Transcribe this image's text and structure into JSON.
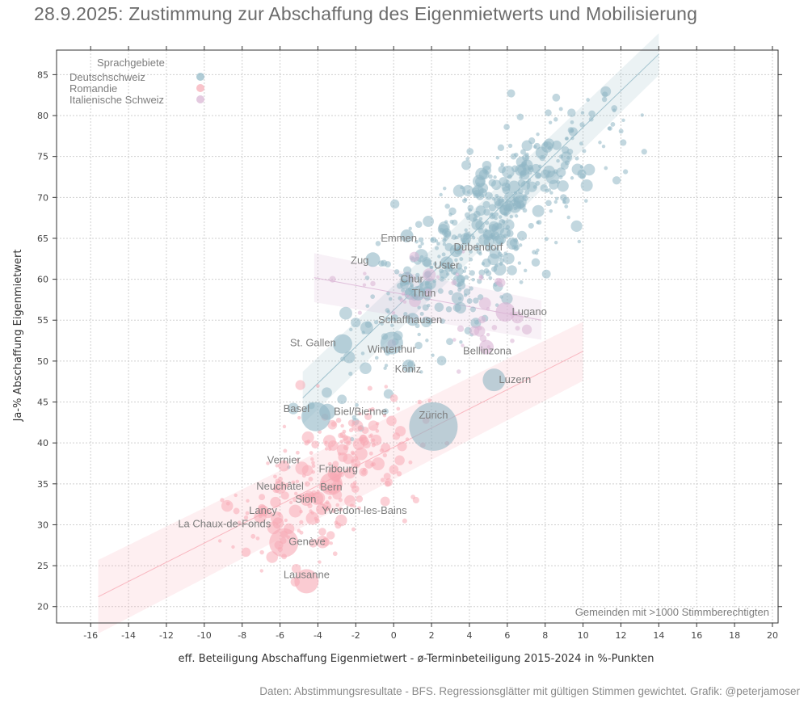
{
  "title": "28.9.2025: Zustimmung zur Abschaffung des Eigenmietwerts und Mobilisierung",
  "caption": "Daten: Abstimmungsresultate - BFS. Regressionsglätter mit gültigen Stimmen gewichtet. Grafik: @peterjamoser",
  "colors": {
    "deutschschweiz": "#8fb6c4",
    "romandie": "#f7a9b4",
    "italienische_schweiz": "#d9b3d3",
    "grid": "#cfcfcf",
    "frame": "#333333"
  },
  "chart_data": {
    "type": "scatter",
    "title": "28.9.2025: Zustimmung zur Abschaffung des Eigenmietwerts und Mobilisierung",
    "xlabel": "eff. Beteiligung Abschaffung Eigenmietwert - ø-Terminbeteiligung 2015-2024 in %-Punkten",
    "ylabel": "Ja-% Abschaffung Eigenmietwert",
    "xlim": [
      -17.8,
      20.3
    ],
    "ylim": [
      18,
      88
    ],
    "xticks": [
      -16,
      -14,
      -12,
      -10,
      -8,
      -6,
      -4,
      -2,
      0,
      2,
      4,
      6,
      8,
      10,
      12,
      14,
      16,
      18,
      20
    ],
    "yticks": [
      20,
      25,
      30,
      35,
      40,
      45,
      50,
      55,
      60,
      65,
      70,
      75,
      80,
      85
    ],
    "grid": true,
    "legend": {
      "title": "Sprachgebiete",
      "position": "top-left",
      "entries": [
        "Deutschschweiz",
        "Romandie",
        "Italienische Schweiz"
      ]
    },
    "note": "Gemeinden mit >1000 Stimmberechtigten",
    "series": [
      {
        "name": "Deutschschweiz",
        "color": "#8fb6c4",
        "smooth": {
          "x0": -4.8,
          "y0": 45.5,
          "x1": 14.0,
          "y1": 87.5
        }
      },
      {
        "name": "Romandie",
        "color": "#f7a9b4",
        "smooth": {
          "x0": -15.6,
          "y0": 21.2,
          "x1": 10.0,
          "y1": 51.2
        }
      },
      {
        "name": "Italienische Schweiz",
        "color": "#d9b3d3",
        "smooth": {
          "x0": -4.2,
          "y0": 60.2,
          "x1": 7.8,
          "y1": 55.0
        }
      }
    ],
    "labeled_points": [
      {
        "name": "Zürich",
        "lang": "Deutschschweiz",
        "x": 2.1,
        "y": 42.0,
        "size": 30
      },
      {
        "name": "Basel",
        "lang": "Deutschschweiz",
        "x": -4.1,
        "y": 43.2,
        "size": 18
      },
      {
        "name": "Bern",
        "lang": "Romandie",
        "x": -3.3,
        "y": 35.0,
        "size": 14
      },
      {
        "name": "Luzern",
        "lang": "Deutschschweiz",
        "x": 5.3,
        "y": 47.7,
        "size": 14
      },
      {
        "name": "St. Gallen",
        "lang": "Deutschschweiz",
        "x": -2.7,
        "y": 52.1,
        "size": 12
      },
      {
        "name": "Winterthur",
        "lang": "Deutschschweiz",
        "x": -0.1,
        "y": 52.2,
        "size": 14
      },
      {
        "name": "Lugano",
        "lang": "Italienische Schweiz",
        "x": 5.9,
        "y": 56.0,
        "size": 12
      },
      {
        "name": "Genève",
        "lang": "Romandie",
        "x": -5.8,
        "y": 27.8,
        "size": 18
      },
      {
        "name": "Lausanne",
        "lang": "Romandie",
        "x": -4.6,
        "y": 23.1,
        "size": 15
      },
      {
        "name": "Biel/Bienne",
        "lang": "Deutschschweiz",
        "x": -3.5,
        "y": 43.8,
        "size": 10
      },
      {
        "name": "Fribourg",
        "lang": "Romandie",
        "x": -3.1,
        "y": 36.3,
        "size": 9
      },
      {
        "name": "Vernier",
        "lang": "Romandie",
        "x": -5.8,
        "y": 37.2,
        "size": 7
      },
      {
        "name": "Neuchâtel",
        "lang": "Romandie",
        "x": -6.0,
        "y": 34.6,
        "size": 8
      },
      {
        "name": "Lancy",
        "lang": "Romandie",
        "x": -6.9,
        "y": 31.7,
        "size": 7
      },
      {
        "name": "Sion",
        "lang": "Romandie",
        "x": -4.6,
        "y": 33.1,
        "size": 8
      },
      {
        "name": "Yverdon-les-Bains",
        "lang": "Romandie",
        "x": -3.8,
        "y": 31.9,
        "size": 7
      },
      {
        "name": "La Chaux-de-Fonds",
        "lang": "Romandie",
        "x": -6.1,
        "y": 30.2,
        "size": 7
      },
      {
        "name": "Thun",
        "lang": "Deutschschweiz",
        "x": 1.3,
        "y": 58.3,
        "size": 9
      },
      {
        "name": "Schaffhausen",
        "lang": "Deutschschweiz",
        "x": 1.0,
        "y": 55.1,
        "size": 8
      },
      {
        "name": "Köniz",
        "lang": "Deutschschweiz",
        "x": 0.8,
        "y": 49.4,
        "size": 8
      },
      {
        "name": "Bellinzona",
        "lang": "Italienische Schweiz",
        "x": 4.9,
        "y": 51.7,
        "size": 9
      },
      {
        "name": "Emmen",
        "lang": "Deutschschweiz",
        "x": 0.7,
        "y": 65.3,
        "size": 8
      },
      {
        "name": "Dübendorf",
        "lang": "Deutschschweiz",
        "x": 3.3,
        "y": 63.5,
        "size": 8
      },
      {
        "name": "Uster",
        "lang": "Deutschschweiz",
        "x": 2.8,
        "y": 62.0,
        "size": 8
      },
      {
        "name": "Chur",
        "lang": "Deutschschweiz",
        "x": 0.7,
        "y": 60.1,
        "size": 8
      },
      {
        "name": "Zug",
        "lang": "Deutschschweiz",
        "x": -1.1,
        "y": 62.4,
        "size": 9
      }
    ]
  }
}
